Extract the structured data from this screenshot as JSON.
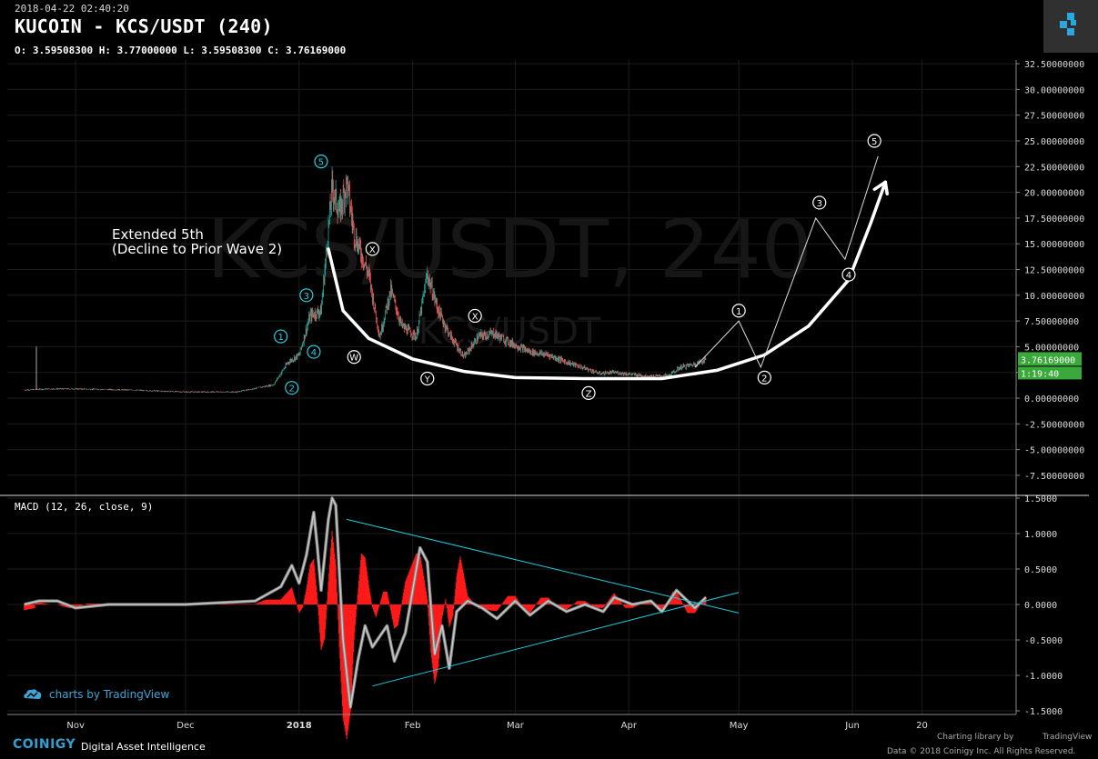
{
  "header": {
    "datetime": "2018-04-22 02:40:20",
    "title": "KUCOIN - KCS/USDT (240)",
    "ohlc": "O: 3.59508300 H: 3.77000000 L: 3.59508300 C: 3.76169000",
    "watermark_main": "KCS/USDT, 240",
    "watermark_sub": "KCS/USDT"
  },
  "price_badges": {
    "last_price": "3.76169000",
    "countdown": "1:19:40"
  },
  "macd_label": "MACD (12, 26, close, 9)",
  "footer": {
    "tv_credit": "charts by TradingView",
    "coinigy": "COINIGY",
    "coinigy_tagline": "Digital Asset Intelligence",
    "charting_library": "Charting library by",
    "tradingview": "TradingView",
    "rights": "Data © 2018  Coinigy Inc. All Rights Reserved."
  },
  "annotations": {
    "extended_line1": "Extended 5th",
    "extended_line2": "(Decline to Prior Wave 2)"
  },
  "colors": {
    "background": "#000000",
    "grid": "#1c1c1c",
    "up": "#26a69a",
    "down": "#ef5350",
    "macd_line": "#c8c8c8",
    "macd_hist": "#ff1a1a",
    "trendline": "#22c8d8",
    "wave_cyan": "#28d0e0",
    "price_badge": "#3aa83a"
  },
  "chart_data": [
    {
      "type": "candlestick",
      "title": "KUCOIN - KCS/USDT (240)",
      "x_ticks": [
        "Nov",
        "Dec",
        "2018",
        "Feb",
        "Mar",
        "Apr",
        "May",
        "Jun",
        "20"
      ],
      "y_ticks": [
        "32.50000000",
        "30.00000000",
        "27.50000000",
        "25.00000000",
        "22.50000000",
        "20.00000000",
        "17.50000000",
        "15.00000000",
        "12.50000000",
        "10.00000000",
        "7.50000000",
        "5.00000000",
        "2.50000000",
        "0.00000000",
        "-2.50000000",
        "-5.00000000",
        "-7.50000000"
      ],
      "ylim": [
        -8.5,
        33
      ],
      "price_path": [
        [
          "2017-10-18",
          0.8
        ],
        [
          "2017-10-25",
          0.9
        ],
        [
          "2017-11-01",
          0.9
        ],
        [
          "2017-11-15",
          0.8
        ],
        [
          "2017-12-01",
          0.6
        ],
        [
          "2017-12-15",
          0.6
        ],
        [
          "2017-12-25",
          1.3
        ],
        [
          "2017-12-29",
          3.5
        ],
        [
          "2018-01-01",
          4.2
        ],
        [
          "2018-01-04",
          8.0
        ],
        [
          "2018-01-07",
          8.5
        ],
        [
          "2018-01-10",
          20.5
        ],
        [
          "2018-01-12",
          18.0
        ],
        [
          "2018-01-14",
          21.0
        ],
        [
          "2018-01-16",
          16.0
        ],
        [
          "2018-01-18",
          14.0
        ],
        [
          "2018-01-20",
          12.0
        ],
        [
          "2018-01-23",
          6.0
        ],
        [
          "2018-01-26",
          10.5
        ],
        [
          "2018-01-29",
          7.0
        ],
        [
          "2018-02-02",
          6.0
        ],
        [
          "2018-02-05",
          12.0
        ],
        [
          "2018-02-08",
          8.5
        ],
        [
          "2018-02-11",
          6.2
        ],
        [
          "2018-02-15",
          4.0
        ],
        [
          "2018-02-19",
          6.0
        ],
        [
          "2018-02-23",
          6.3
        ],
        [
          "2018-02-27",
          5.5
        ],
        [
          "2018-03-05",
          4.5
        ],
        [
          "2018-03-10",
          4.2
        ],
        [
          "2018-03-15",
          3.5
        ],
        [
          "2018-03-20",
          2.9
        ],
        [
          "2018-03-24",
          2.4
        ],
        [
          "2018-03-28",
          2.5
        ],
        [
          "2018-04-02",
          2.3
        ],
        [
          "2018-04-07",
          2.1
        ],
        [
          "2018-04-12",
          2.2
        ],
        [
          "2018-04-15",
          3.0
        ],
        [
          "2018-04-19",
          3.3
        ],
        [
          "2018-04-22",
          3.76
        ]
      ],
      "waves": [
        {
          "label": "1",
          "date": "2017-12-27",
          "value": 6.0,
          "style": "cyan"
        },
        {
          "label": "2",
          "date": "2017-12-30",
          "value": 1.0,
          "style": "cyan"
        },
        {
          "label": "3",
          "date": "2018-01-03",
          "value": 10.0,
          "style": "cyan"
        },
        {
          "label": "4",
          "date": "2018-01-05",
          "value": 4.5,
          "style": "cyan"
        },
        {
          "label": "5",
          "date": "2018-01-07",
          "value": 23.0,
          "style": "cyan"
        },
        {
          "label": "W",
          "date": "2018-01-16",
          "value": 4.0,
          "style": "white"
        },
        {
          "label": "X",
          "date": "2018-01-21",
          "value": 14.5,
          "style": "white"
        },
        {
          "label": "Y",
          "date": "2018-02-05",
          "value": 1.9,
          "style": "white"
        },
        {
          "label": "X",
          "date": "2018-02-18",
          "value": 8.0,
          "style": "white"
        },
        {
          "label": "Z",
          "date": "2018-03-21",
          "value": 0.5,
          "style": "white"
        },
        {
          "label": "1",
          "date": "2018-05-01",
          "value": 8.5,
          "style": "white"
        },
        {
          "label": "2",
          "date": "2018-05-08",
          "value": 2.0,
          "style": "white"
        },
        {
          "label": "3",
          "date": "2018-05-23",
          "value": 19.0,
          "style": "white"
        },
        {
          "label": "4",
          "date": "2018-05-31",
          "value": 12.0,
          "style": "white"
        },
        {
          "label": "5",
          "date": "2018-06-07",
          "value": 25.0,
          "style": "white"
        }
      ],
      "projection_path": [
        [
          "2018-04-19",
          3.0
        ],
        [
          "2018-05-01",
          7.5
        ],
        [
          "2018-05-07",
          3.0
        ],
        [
          "2018-05-22",
          17.5
        ],
        [
          "2018-05-30",
          13.5
        ],
        [
          "2018-06-08",
          23.5
        ]
      ],
      "cup_curve": [
        [
          "2018-01-09",
          14.5
        ],
        [
          "2018-01-13",
          8.5
        ],
        [
          "2018-01-20",
          5.8
        ],
        [
          "2018-02-01",
          3.8
        ],
        [
          "2018-02-15",
          2.6
        ],
        [
          "2018-03-01",
          2.0
        ],
        [
          "2018-03-20",
          1.9
        ],
        [
          "2018-04-10",
          1.9
        ],
        [
          "2018-04-25",
          2.7
        ],
        [
          "2018-05-08",
          4.2
        ],
        [
          "2018-05-20",
          7.0
        ],
        [
          "2018-05-31",
          11.5
        ],
        [
          "2018-06-06",
          17.0
        ],
        [
          "2018-06-10",
          21.0
        ]
      ]
    },
    {
      "type": "line",
      "title": "MACD (12, 26, close, 9)",
      "y_ticks": [
        "1.5000",
        "1.0000",
        "0.5000",
        "0.0000",
        "-0.5000",
        "-1.0000",
        "-1.5000"
      ],
      "ylim": [
        -1.5,
        1.5
      ],
      "macd_path": [
        [
          "2017-10-18",
          0.0
        ],
        [
          "2017-10-22",
          0.05
        ],
        [
          "2017-10-27",
          0.05
        ],
        [
          "2017-11-01",
          -0.05
        ],
        [
          "2017-11-10",
          0.0
        ],
        [
          "2017-12-01",
          0.0
        ],
        [
          "2017-12-20",
          0.05
        ],
        [
          "2017-12-27",
          0.25
        ],
        [
          "2017-12-30",
          0.55
        ],
        [
          "2018-01-01",
          0.3
        ],
        [
          "2018-01-03",
          0.7
        ],
        [
          "2018-01-05",
          1.3
        ],
        [
          "2018-01-06",
          0.8
        ],
        [
          "2018-01-07",
          0.2
        ],
        [
          "2018-01-09",
          1.2
        ],
        [
          "2018-01-10",
          1.5
        ],
        [
          "2018-01-11",
          1.4
        ],
        [
          "2018-01-13",
          -0.5
        ],
        [
          "2018-01-15",
          -1.45
        ],
        [
          "2018-01-17",
          -0.8
        ],
        [
          "2018-01-19",
          -0.3
        ],
        [
          "2018-01-21",
          -0.6
        ],
        [
          "2018-01-25",
          -0.3
        ],
        [
          "2018-01-27",
          -0.8
        ],
        [
          "2018-01-30",
          -0.4
        ],
        [
          "2018-02-03",
          0.8
        ],
        [
          "2018-02-05",
          0.6
        ],
        [
          "2018-02-07",
          -0.7
        ],
        [
          "2018-02-09",
          -0.3
        ],
        [
          "2018-02-11",
          -0.9
        ],
        [
          "2018-02-13",
          -0.1
        ],
        [
          "2018-02-16",
          0.05
        ],
        [
          "2018-02-20",
          -0.05
        ],
        [
          "2018-02-24",
          -0.2
        ],
        [
          "2018-03-01",
          0.05
        ],
        [
          "2018-03-05",
          -0.15
        ],
        [
          "2018-03-10",
          0.05
        ],
        [
          "2018-03-15",
          -0.1
        ],
        [
          "2018-03-20",
          0.0
        ],
        [
          "2018-03-25",
          -0.1
        ],
        [
          "2018-03-28",
          0.1
        ],
        [
          "2018-04-02",
          0.0
        ],
        [
          "2018-04-07",
          0.05
        ],
        [
          "2018-04-10",
          -0.1
        ],
        [
          "2018-04-14",
          0.2
        ],
        [
          "2018-04-17",
          0.05
        ],
        [
          "2018-04-19",
          -0.05
        ],
        [
          "2018-04-22",
          0.1
        ]
      ],
      "trendline_upper": [
        [
          "2018-01-14",
          1.2
        ],
        [
          "2018-05-01",
          -0.12
        ]
      ],
      "trendline_lower": [
        [
          "2018-01-21",
          -1.15
        ],
        [
          "2018-05-01",
          0.17
        ]
      ]
    }
  ]
}
